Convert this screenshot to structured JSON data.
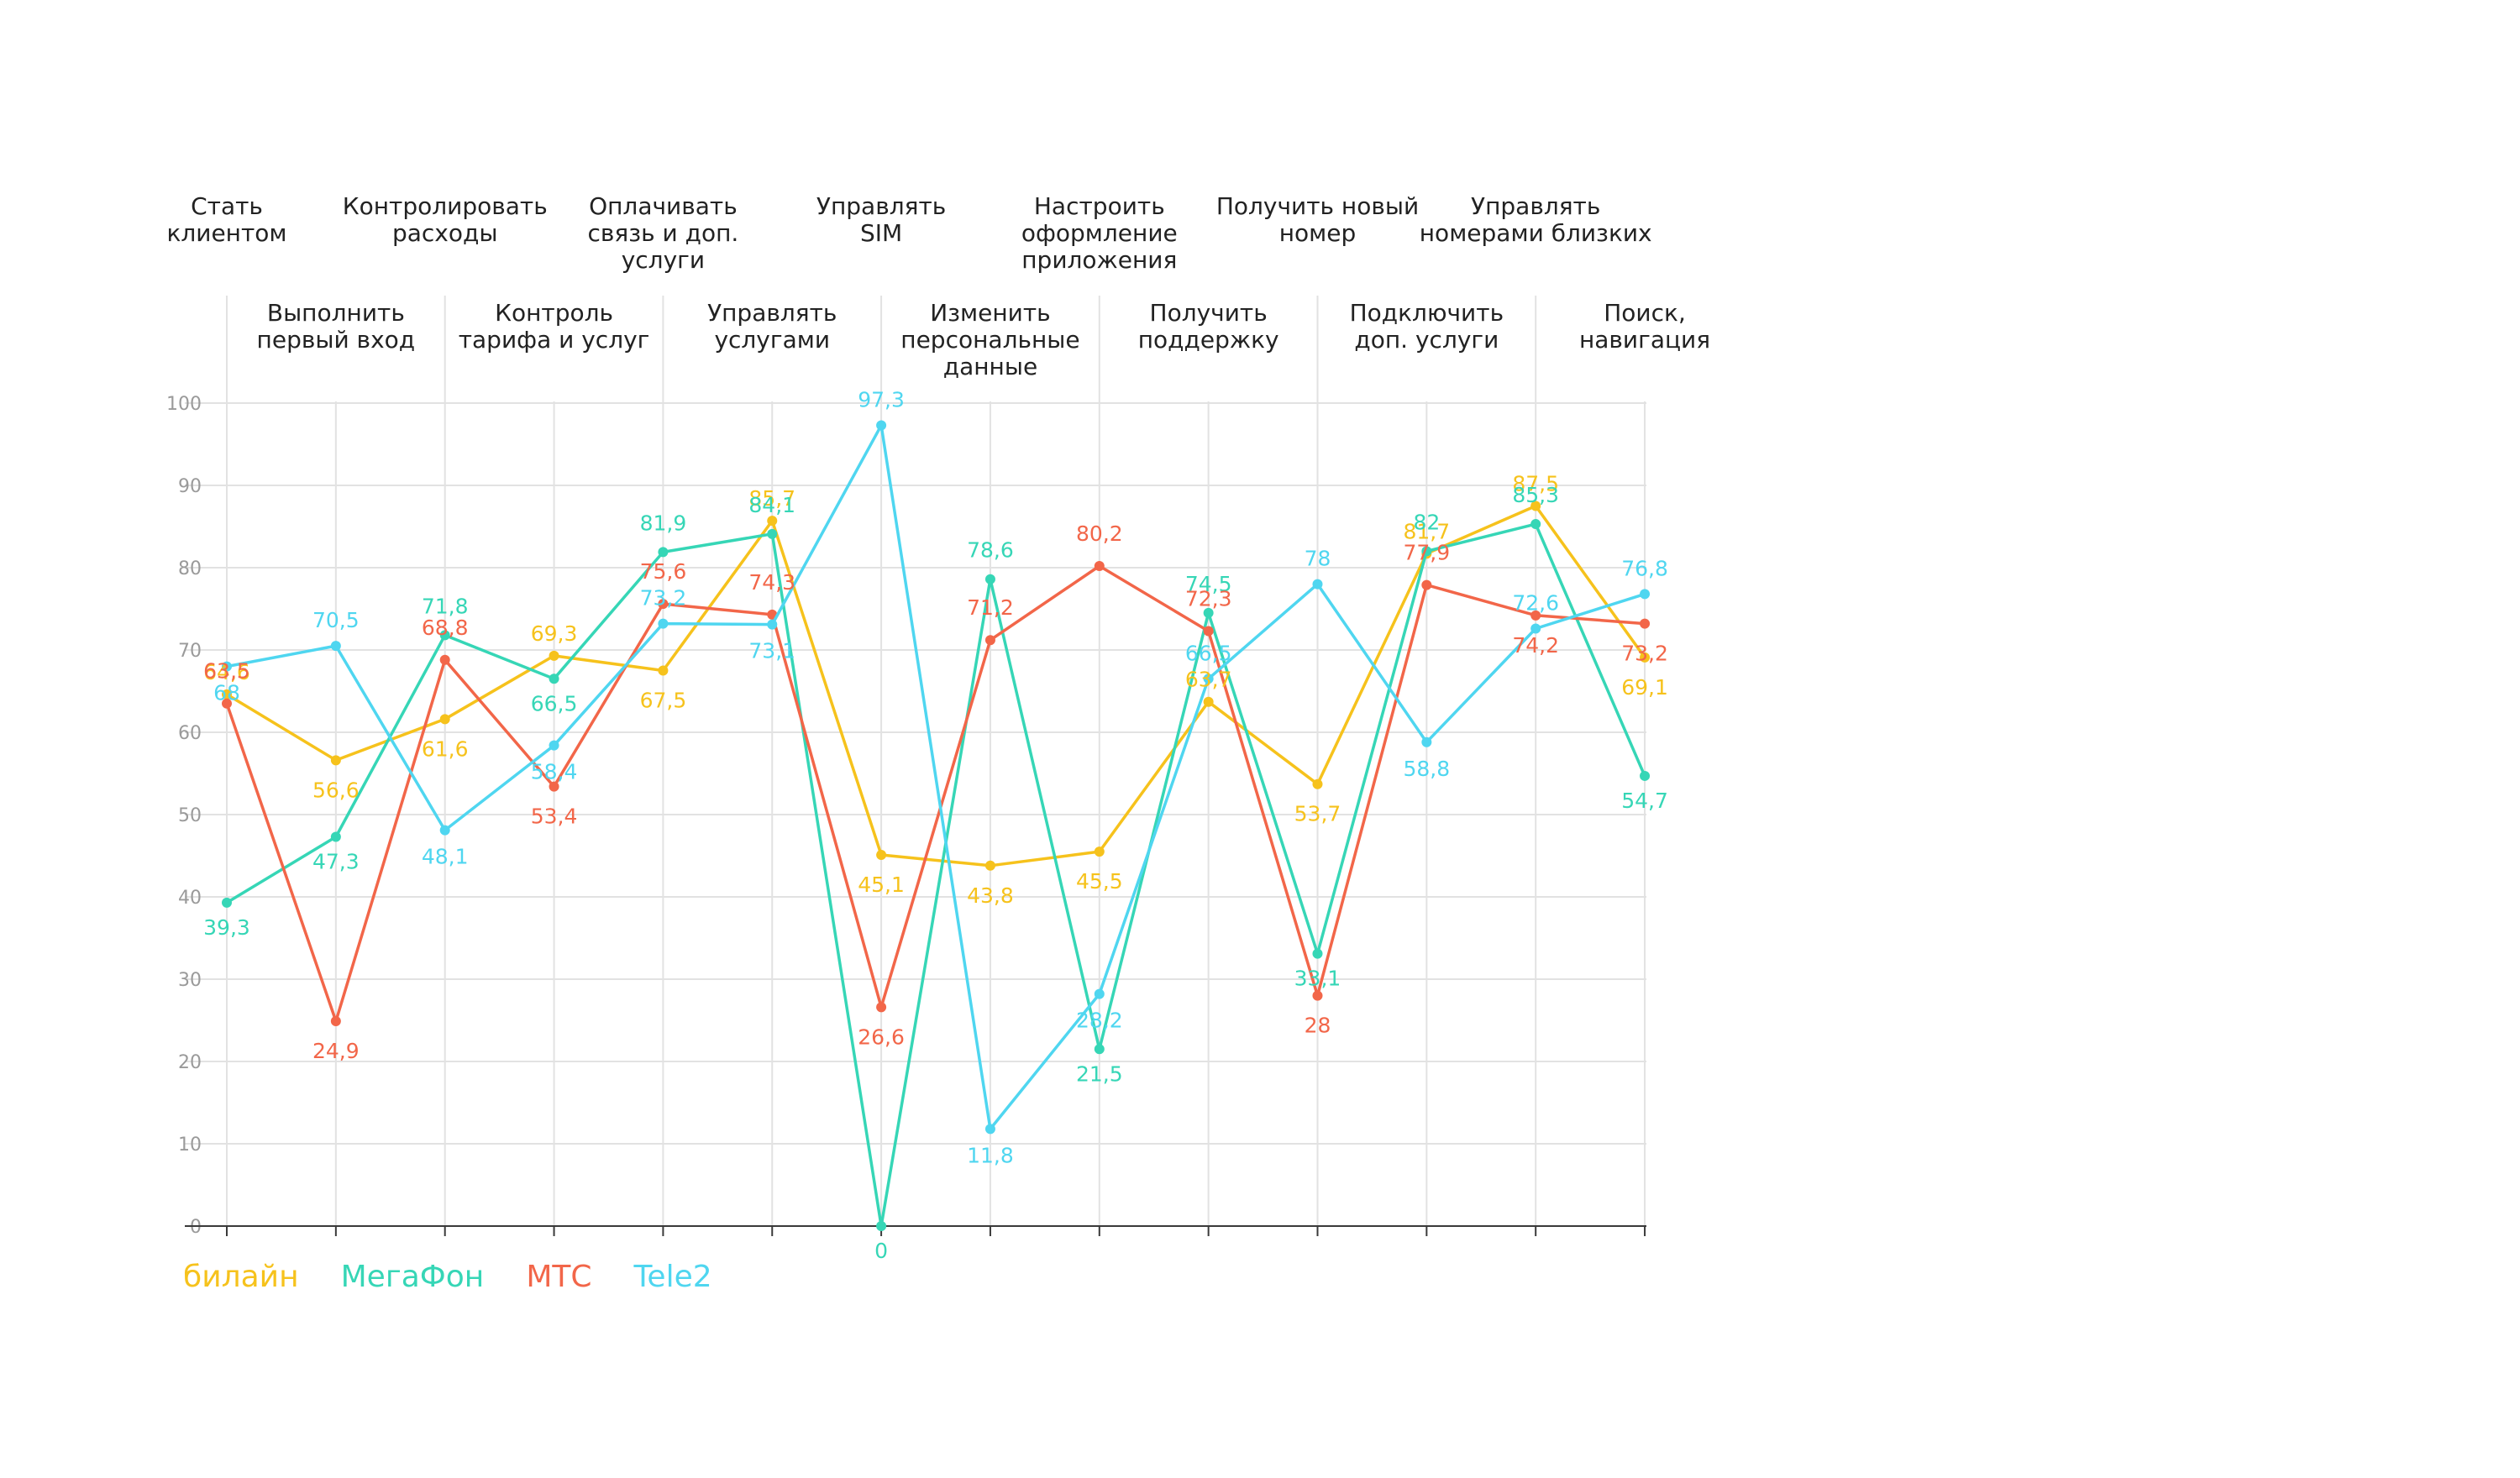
{
  "chart_data": {
    "type": "line",
    "categories": [
      [
        "Стать",
        "клиентом"
      ],
      [
        "Выполнить",
        "первый вход"
      ],
      [
        "Контролировать",
        "расходы"
      ],
      [
        "Контроль",
        "тарифа и услуг"
      ],
      [
        "Оплачивать",
        "связь и доп.",
        "услуги"
      ],
      [
        "Управлять",
        "услугами"
      ],
      [
        "Управлять",
        "SIM"
      ],
      [
        "Изменить",
        "персональные",
        "данные"
      ],
      [
        "Настроить",
        "оформление",
        "приложения"
      ],
      [
        "Получить",
        "поддержку"
      ],
      [
        "Получить новый",
        "номер"
      ],
      [
        "Подключить",
        "доп. услуги"
      ],
      [
        "Управлять",
        "номерами близких"
      ],
      [
        "Поиск,",
        "навигация"
      ]
    ],
    "ylim": [
      0,
      100
    ],
    "yticks": [
      "0",
      "10",
      "20",
      "30",
      "40",
      "50",
      "60",
      "70",
      "80",
      "90",
      "100"
    ],
    "grid": true,
    "legend_position": "bottom-left",
    "series": [
      {
        "name": "билайн",
        "color": "#f6c21c",
        "values": [
          64.6,
          56.6,
          61.6,
          69.3,
          67.5,
          85.7,
          45.1,
          43.8,
          45.5,
          63.7,
          53.7,
          81.7,
          87.5,
          69.1
        ],
        "labels": [
          "64,6",
          "56,6",
          "61,6",
          "69,3",
          "67,5",
          "85,7",
          "45,1",
          "43,8",
          "45,5",
          "63,7",
          "53,7",
          "81,7",
          "87,5",
          "69,1"
        ]
      },
      {
        "name": "МегаФон",
        "color": "#36d6b6",
        "values": [
          39.3,
          47.3,
          71.8,
          66.5,
          81.9,
          84.1,
          0,
          78.6,
          21.5,
          74.5,
          33.1,
          82,
          85.3,
          54.7
        ],
        "labels": [
          "39,3",
          "47,3",
          "71,8",
          "66,5",
          "81,9",
          "84,1",
          "0",
          "78,6",
          "21,5",
          "74,5",
          "33,1",
          "82",
          "85,3",
          "54,7"
        ]
      },
      {
        "name": "МТС",
        "color": "#f26649",
        "values": [
          63.5,
          24.9,
          68.8,
          53.4,
          75.6,
          74.3,
          26.6,
          71.2,
          80.2,
          72.3,
          28,
          77.9,
          74.2,
          73.2
        ],
        "labels": [
          "63,5",
          "24,9",
          "68,8",
          "53,4",
          "75,6",
          "74,3",
          "26,6",
          "71,2",
          "80,2",
          "72,3",
          "28",
          "77,9",
          "74,2",
          "73,2"
        ]
      },
      {
        "name": "Tele2",
        "color": "#4fd6f0",
        "values": [
          68,
          70.5,
          48.1,
          58.4,
          73.2,
          73.1,
          97.3,
          11.8,
          28.2,
          66.5,
          78,
          58.8,
          72.6,
          76.8
        ],
        "labels": [
          "68",
          "70,5",
          "48,1",
          "58,4",
          "73,2",
          "73,1",
          "97,3",
          "11,8",
          "28,2",
          "66,5",
          "78",
          "58,8",
          "72,6",
          "76,8"
        ]
      }
    ]
  }
}
